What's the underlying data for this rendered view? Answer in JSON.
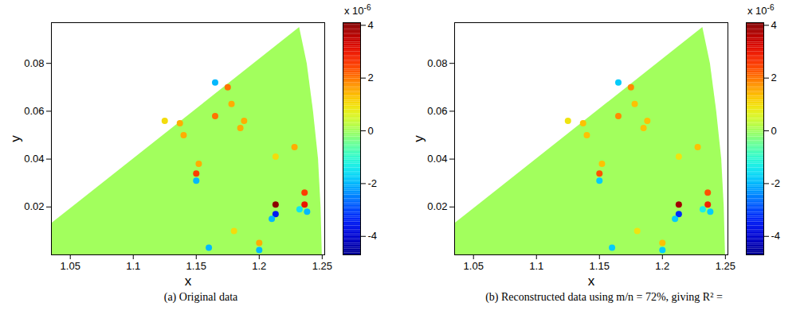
{
  "chart_data": [
    {
      "type": "heatmap",
      "caption": "(a) Original data",
      "x_label": "x",
      "y_label": "y",
      "xlim": [
        1.035,
        1.252
      ],
      "ylim": [
        0,
        0.097
      ],
      "xticks": [
        1.05,
        1.1,
        1.15,
        1.2,
        1.25
      ],
      "yticks": [
        0.02,
        0.04,
        0.06,
        0.08
      ],
      "domain_boundary": [
        [
          1.035,
          0.013
        ],
        [
          1.232,
          0.095
        ],
        [
          1.238,
          0.08
        ],
        [
          1.243,
          0.06
        ],
        [
          1.247,
          0.04
        ],
        [
          1.249,
          0.02
        ],
        [
          1.25,
          0
        ]
      ],
      "domain_value": 0,
      "cells": [
        {
          "x": 1.213,
          "y": 0.021,
          "value": 4
        },
        {
          "x": 1.213,
          "y": 0.017,
          "value": -3.5
        },
        {
          "x": 1.21,
          "y": 0.015,
          "value": -2
        },
        {
          "x": 1.236,
          "y": 0.021,
          "value": 3
        },
        {
          "x": 1.236,
          "y": 0.026,
          "value": 2.5
        },
        {
          "x": 1.238,
          "y": 0.018,
          "value": -2
        },
        {
          "x": 1.232,
          "y": 0.019,
          "value": -1.5
        },
        {
          "x": 1.15,
          "y": 0.034,
          "value": 2.5
        },
        {
          "x": 1.15,
          "y": 0.031,
          "value": -2
        },
        {
          "x": 1.152,
          "y": 0.038,
          "value": 1.5
        },
        {
          "x": 1.165,
          "y": 0.072,
          "value": -2
        },
        {
          "x": 1.175,
          "y": 0.07,
          "value": 2
        },
        {
          "x": 1.178,
          "y": 0.063,
          "value": 1.5
        },
        {
          "x": 1.137,
          "y": 0.055,
          "value": 1.5
        },
        {
          "x": 1.14,
          "y": 0.05,
          "value": 1.5
        },
        {
          "x": 1.188,
          "y": 0.056,
          "value": 1.5
        },
        {
          "x": 1.185,
          "y": 0.053,
          "value": 1.5
        },
        {
          "x": 1.2,
          "y": 0.005,
          "value": 1.5
        },
        {
          "x": 1.2,
          "y": 0.002,
          "value": -2
        },
        {
          "x": 1.16,
          "y": 0.003,
          "value": -2
        },
        {
          "x": 1.18,
          "y": 0.01,
          "value": 1
        },
        {
          "x": 1.165,
          "y": 0.058,
          "value": 2
        },
        {
          "x": 1.125,
          "y": 0.056,
          "value": 1
        },
        {
          "x": 1.213,
          "y": 0.041,
          "value": 1
        },
        {
          "x": 1.228,
          "y": 0.045,
          "value": 1.5
        }
      ],
      "colorbar": {
        "range": [
          -4.7,
          4.1
        ],
        "ticks": [
          -4,
          -2,
          0,
          2,
          4
        ],
        "label_base": "x 10",
        "label_exponent": "-6"
      }
    },
    {
      "type": "heatmap",
      "caption": "(b) Reconstructed data using m/n = 72%, giving R² =",
      "x_label": "x",
      "y_label": "y",
      "xlim": [
        1.035,
        1.252
      ],
      "ylim": [
        0,
        0.097
      ],
      "xticks": [
        1.05,
        1.1,
        1.15,
        1.2,
        1.25
      ],
      "yticks": [
        0.02,
        0.04,
        0.06,
        0.08
      ],
      "domain_boundary": [
        [
          1.035,
          0.013
        ],
        [
          1.232,
          0.095
        ],
        [
          1.238,
          0.08
        ],
        [
          1.243,
          0.06
        ],
        [
          1.247,
          0.04
        ],
        [
          1.249,
          0.02
        ],
        [
          1.25,
          0
        ]
      ],
      "domain_value": 0,
      "cells": [
        {
          "x": 1.213,
          "y": 0.021,
          "value": 3.8
        },
        {
          "x": 1.213,
          "y": 0.017,
          "value": -3.3
        },
        {
          "x": 1.21,
          "y": 0.015,
          "value": -1.8
        },
        {
          "x": 1.236,
          "y": 0.021,
          "value": 2.8
        },
        {
          "x": 1.236,
          "y": 0.026,
          "value": 2.3
        },
        {
          "x": 1.238,
          "y": 0.018,
          "value": -1.8
        },
        {
          "x": 1.232,
          "y": 0.019,
          "value": -1.3
        },
        {
          "x": 1.15,
          "y": 0.034,
          "value": 2.3
        },
        {
          "x": 1.15,
          "y": 0.031,
          "value": -1.8
        },
        {
          "x": 1.152,
          "y": 0.038,
          "value": 1.3
        },
        {
          "x": 1.165,
          "y": 0.072,
          "value": -1.8
        },
        {
          "x": 1.175,
          "y": 0.07,
          "value": 1.8
        },
        {
          "x": 1.178,
          "y": 0.063,
          "value": 1.3
        },
        {
          "x": 1.137,
          "y": 0.055,
          "value": 1.3
        },
        {
          "x": 1.14,
          "y": 0.05,
          "value": 1.3
        },
        {
          "x": 1.188,
          "y": 0.056,
          "value": 1.3
        },
        {
          "x": 1.185,
          "y": 0.053,
          "value": 1.3
        },
        {
          "x": 1.2,
          "y": 0.005,
          "value": 1.3
        },
        {
          "x": 1.2,
          "y": 0.002,
          "value": -1.8
        },
        {
          "x": 1.16,
          "y": 0.003,
          "value": -1.8
        },
        {
          "x": 1.18,
          "y": 0.01,
          "value": 0.9
        },
        {
          "x": 1.165,
          "y": 0.058,
          "value": 1.8
        },
        {
          "x": 1.125,
          "y": 0.056,
          "value": 0.9
        },
        {
          "x": 1.213,
          "y": 0.041,
          "value": 0.9
        },
        {
          "x": 1.228,
          "y": 0.045,
          "value": 1.3
        }
      ],
      "colorbar": {
        "range": [
          -4.7,
          4.1
        ],
        "ticks": [
          -4,
          -2,
          0,
          2,
          4
        ],
        "label_base": "x 10",
        "label_exponent": "-6"
      }
    }
  ]
}
